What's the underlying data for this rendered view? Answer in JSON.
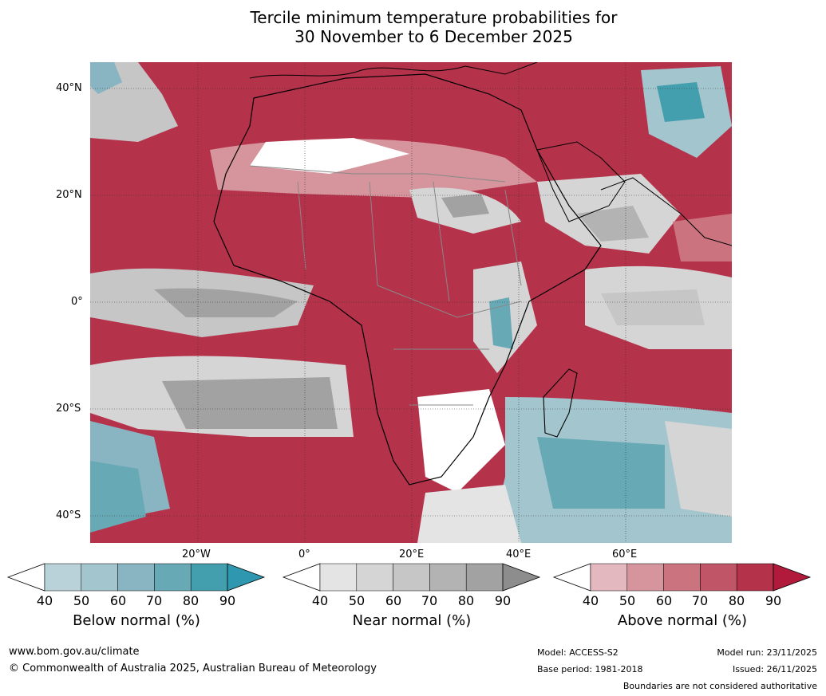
{
  "title": {
    "line1": "Tercile minimum temperature probabilities for",
    "line2": "30 November to 6 December 2025"
  },
  "map": {
    "lat_labels": [
      "40°N",
      "20°N",
      "0°",
      "20°S",
      "40°S"
    ],
    "lon_labels": [
      "20°W",
      "0°",
      "20°E",
      "40°E",
      "60°E"
    ]
  },
  "colorbars": [
    {
      "title": "Below normal (%)",
      "ticks": [
        "40",
        "50",
        "60",
        "70",
        "80",
        "90"
      ],
      "colors": [
        "#ffffff",
        "#b9d2d9",
        "#a3c5cd",
        "#88b5c1",
        "#68a9b6",
        "#439ead",
        "#2f98b0"
      ]
    },
    {
      "title": "Near normal (%)",
      "ticks": [
        "40",
        "50",
        "60",
        "70",
        "80",
        "90"
      ],
      "colors": [
        "#ffffff",
        "#e4e4e4",
        "#d5d5d5",
        "#c6c6c6",
        "#b3b3b3",
        "#a2a2a2",
        "#8d8d8d"
      ]
    },
    {
      "title": "Above normal (%)",
      "ticks": [
        "40",
        "50",
        "60",
        "70",
        "80",
        "90"
      ],
      "colors": [
        "#ffffff",
        "#e3b9bf",
        "#d6959d",
        "#cb737e",
        "#c15568",
        "#b5324b",
        "#b11a3b"
      ]
    }
  ],
  "footer": {
    "website": "www.bom.gov.au/climate",
    "copyright": "© Commonwealth of Australia 2025, Australian Bureau of Meteorology",
    "model": "Model: ACCESS-S2",
    "base_period": "Base period: 1981-2018",
    "model_run": "Model run: 23/11/2025",
    "issued": "Issued: 26/11/2025",
    "disclaimer": "Boundaries are not considered authoritative"
  }
}
